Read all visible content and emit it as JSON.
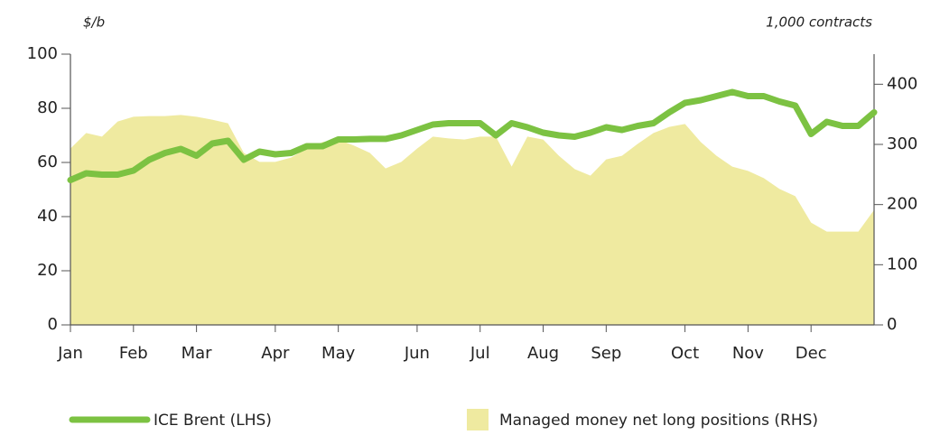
{
  "chart_data": {
    "type": "line",
    "y_label": "$/b",
    "y2_label": "1,000 contracts",
    "categories": [
      "Jan",
      null,
      null,
      null,
      "Feb",
      null,
      null,
      null,
      "Mar",
      null,
      null,
      null,
      null,
      "Apr",
      null,
      null,
      null,
      "May",
      null,
      null,
      null,
      null,
      "Jun",
      null,
      null,
      null,
      "Jul",
      null,
      null,
      null,
      "Aug",
      null,
      null,
      null,
      "Sep",
      null,
      null,
      null,
      null,
      "Oct",
      null,
      null,
      null,
      "Nov",
      null,
      null,
      null,
      "Dec",
      null,
      null,
      null,
      null
    ],
    "series": [
      {
        "name": "ICE Brent (LHS)",
        "color": "#7cc242",
        "kind": "line",
        "axis": "y",
        "values": [
          53.5,
          56,
          55.5,
          55.5,
          57,
          61,
          63.5,
          65,
          62.5,
          67,
          68,
          61,
          64,
          63,
          63.5,
          66,
          66,
          68.5,
          68.5,
          68.7,
          68.7,
          70,
          72,
          74,
          74.5,
          74.5,
          74.5,
          70,
          74.5,
          73,
          71,
          70,
          69.5,
          71,
          73,
          72,
          73.5,
          74.5,
          78.5,
          82,
          83,
          84.5,
          86,
          84.5,
          84.5,
          82.5,
          81,
          70.5,
          75,
          73.5,
          73.5,
          78.5
        ]
      },
      {
        "name": "Managed money net long positions (RHS)",
        "color": "#efeaa0",
        "kind": "area",
        "axis": "y2",
        "values": [
          293,
          319,
          313,
          338,
          346,
          347,
          347,
          349,
          346,
          341,
          335,
          286,
          271,
          271,
          278,
          293,
          304,
          308,
          298,
          286,
          260,
          271,
          293,
          313,
          310,
          308,
          313,
          313,
          263,
          313,
          308,
          281,
          259,
          248,
          275,
          281,
          301,
          319,
          329,
          334,
          304,
          281,
          263,
          256,
          244,
          226,
          214,
          170,
          155,
          155,
          155,
          191
        ]
      }
    ],
    "ylim": [
      0,
      100
    ],
    "yticks": [
      0,
      20,
      40,
      60,
      80,
      100
    ],
    "y2lim": [
      0,
      450
    ],
    "y2ticks": [
      0,
      100,
      200,
      300,
      400
    ]
  }
}
